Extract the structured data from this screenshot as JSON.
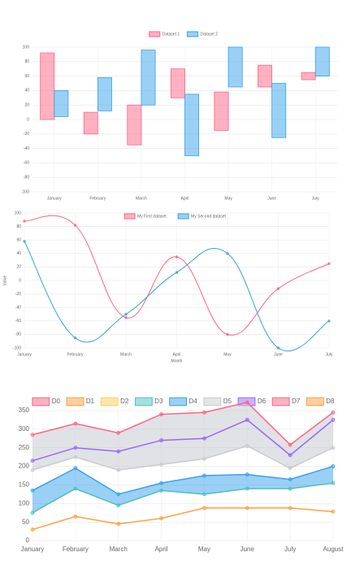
{
  "chart_data": [
    {
      "type": "floating-bar",
      "categories": [
        "January",
        "February",
        "March",
        "April",
        "May",
        "June",
        "July"
      ],
      "series": [
        {
          "name": "Dataset 1",
          "color": "#ff6384",
          "values": [
            [
              0,
              92
            ],
            [
              -20,
              10
            ],
            [
              -35,
              20
            ],
            [
              30,
              70
            ],
            [
              -15,
              38
            ],
            [
              45,
              75
            ],
            [
              55,
              65
            ]
          ]
        },
        {
          "name": "Dataset 2",
          "color": "#36a2eb",
          "values": [
            [
              4,
              40
            ],
            [
              12,
              58
            ],
            [
              20,
              96
            ],
            [
              -50,
              35
            ],
            [
              45,
              100
            ],
            [
              -25,
              50
            ],
            [
              60,
              100
            ]
          ]
        }
      ],
      "ylim": [
        -100,
        100
      ],
      "yticks": [
        -100,
        -80,
        -60,
        -40,
        -20,
        0,
        20,
        40,
        60,
        80,
        100
      ],
      "grid": true,
      "legend": "top"
    },
    {
      "type": "line",
      "x_label": "Month",
      "y_label": "Value",
      "categories": [
        "January",
        "February",
        "March",
        "April",
        "May",
        "June",
        "July"
      ],
      "series": [
        {
          "name": "My First dataset",
          "color": "#ff6384",
          "values": [
            88,
            82,
            -55,
            35,
            -80,
            -12,
            25
          ]
        },
        {
          "name": "My Second dataset",
          "color": "#36a2eb",
          "values": [
            58,
            -85,
            -50,
            12,
            40,
            -100,
            -60
          ]
        }
      ],
      "ylim": [
        -100,
        100
      ],
      "yticks": [
        -100,
        -80,
        -60,
        -40,
        -20,
        0,
        20,
        40,
        60,
        80,
        100
      ],
      "grid": true,
      "legend": "top",
      "smooth": true
    },
    {
      "type": "area",
      "categories": [
        "January",
        "February",
        "March",
        "April",
        "May",
        "June",
        "July",
        "August"
      ],
      "series": [
        {
          "name": "D0",
          "color": "#ff6384",
          "values": [
            285,
            315,
            290,
            340,
            345,
            372,
            258,
            345
          ]
        },
        {
          "name": "D1",
          "color": "#ff9f40",
          "values": [
            30,
            65,
            45,
            60,
            88,
            88,
            88,
            78
          ]
        },
        {
          "name": "D2",
          "color": "#ffcd56",
          "values": [
            null,
            null,
            null,
            null,
            null,
            null,
            null,
            null
          ]
        },
        {
          "name": "D3",
          "color": "#4bc0c0",
          "values": [
            75,
            140,
            95,
            135,
            125,
            140,
            140,
            155
          ]
        },
        {
          "name": "D4",
          "color": "#36a2eb",
          "values": [
            135,
            195,
            125,
            155,
            175,
            178,
            165,
            200
          ],
          "fill_to": 3
        },
        {
          "name": "D5",
          "color": "#c9cbcf",
          "values": [
            190,
            225,
            190,
            205,
            220,
            255,
            195,
            250
          ],
          "fill_to": 0
        },
        {
          "name": "D6",
          "color": "#9966ff",
          "values": [
            215,
            250,
            240,
            270,
            275,
            325,
            230,
            325
          ]
        },
        {
          "name": "D7",
          "color": "#ff6384",
          "values": [
            null,
            null,
            null,
            null,
            null,
            null,
            null,
            null
          ]
        },
        {
          "name": "D8",
          "color": "#ff9f40",
          "values": [
            null,
            null,
            null,
            null,
            null,
            null,
            null,
            null
          ]
        }
      ],
      "ylim": [
        0,
        350
      ],
      "yticks": [
        0,
        50,
        100,
        150,
        200,
        250,
        300,
        350
      ],
      "grid": true,
      "legend": "top"
    }
  ]
}
